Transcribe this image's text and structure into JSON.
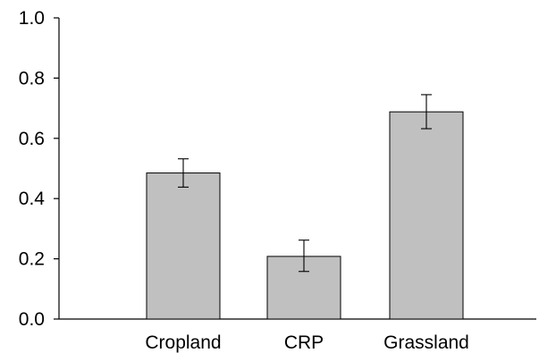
{
  "chart_data": {
    "type": "bar",
    "title": "",
    "xlabel": "",
    "ylabel": "",
    "categories": [
      "Cropland",
      "CRP",
      "Grassland"
    ],
    "values": [
      0.485,
      0.208,
      0.688
    ],
    "error_low": [
      0.438,
      0.158,
      0.632
    ],
    "error_high": [
      0.532,
      0.262,
      0.745
    ],
    "ylim": [
      0.0,
      1.0
    ],
    "yticks": [
      "0.0",
      "0.2",
      "0.4",
      "0.6",
      "0.8",
      "1.0"
    ],
    "grid": false,
    "legend": "none",
    "bar_color": "#c0c0c0",
    "bar_edge_color": "#000000"
  }
}
